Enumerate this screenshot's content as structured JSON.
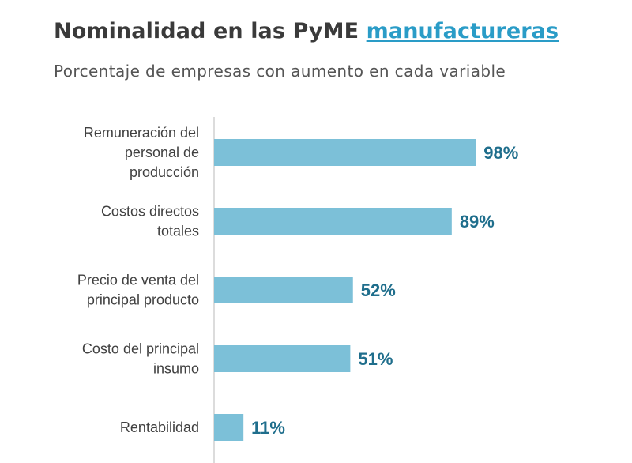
{
  "header": {
    "title": "Nominalidad en las PyME",
    "title_accent": "manufactureras",
    "subtitle": "Porcentaje de empresas con aumento en cada variable"
  },
  "colors": {
    "bar": "#7cc0d8",
    "value_text": "#1f6e8c",
    "accent_text": "#2a9cc7",
    "axis": "#d0d0d0"
  },
  "chart_data": {
    "type": "bar",
    "orientation": "horizontal",
    "title": "Nominalidad en las PyME manufactureras",
    "subtitle": "Porcentaje de empresas con aumento en cada variable",
    "categories": [
      [
        "Remuneración del",
        "personal de",
        "producción"
      ],
      [
        "Costos directos",
        "totales"
      ],
      [
        "Precio de venta del",
        "principal producto"
      ],
      [
        "Costo del principal",
        "insumo"
      ],
      [
        "Rentabilidad"
      ]
    ],
    "values": [
      98,
      89,
      52,
      51,
      11
    ],
    "value_labels": [
      "98%",
      "89%",
      "52%",
      "51%",
      "11%"
    ],
    "xlim": [
      0,
      100
    ],
    "grid": false,
    "legend": "none"
  }
}
